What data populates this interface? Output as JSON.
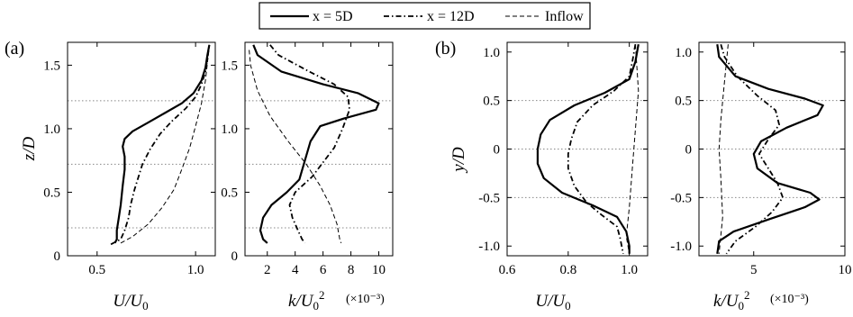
{
  "legend": [
    {
      "label": "x = 5D",
      "style": "solid"
    },
    {
      "label": "x = 12D",
      "style": "dashdot"
    },
    {
      "label": "Inflow",
      "style": "dashed"
    }
  ],
  "chart_data": [
    {
      "type": "line",
      "panel": "(a)",
      "ylabel": "z/D",
      "xlabel": "U/U0",
      "xlim": [
        0.35,
        1.1
      ],
      "ylim": [
        0,
        1.68
      ],
      "xticks": [
        0.5,
        1.0
      ],
      "xtick_labels": [
        "0.5",
        "1.0"
      ],
      "yticks": [
        0,
        0.5,
        1.0,
        1.5
      ],
      "ytick_labels": [
        "0",
        "0.5",
        "1.0",
        "1.5"
      ],
      "reference_lines": [
        0.22,
        0.72,
        1.22
      ],
      "series": [
        {
          "name": "x = 5D",
          "style": "solid",
          "points": [
            [
              0.59,
              0.1
            ],
            [
              0.6,
              0.13
            ],
            [
              0.6,
              0.2
            ],
            [
              0.61,
              0.3
            ],
            [
              0.62,
              0.4
            ],
            [
              0.63,
              0.55
            ],
            [
              0.64,
              0.68
            ],
            [
              0.64,
              0.78
            ],
            [
              0.63,
              0.86
            ],
            [
              0.64,
              0.92
            ],
            [
              0.68,
              0.98
            ],
            [
              0.76,
              1.05
            ],
            [
              0.84,
              1.12
            ],
            [
              0.93,
              1.2
            ],
            [
              0.99,
              1.28
            ],
            [
              1.03,
              1.38
            ],
            [
              1.05,
              1.48
            ],
            [
              1.06,
              1.58
            ],
            [
              1.07,
              1.66
            ]
          ]
        },
        {
          "name": "x = 12D",
          "style": "dashdot",
          "points": [
            [
              0.57,
              0.09
            ],
            [
              0.62,
              0.13
            ],
            [
              0.64,
              0.2
            ],
            [
              0.66,
              0.3
            ],
            [
              0.67,
              0.4
            ],
            [
              0.69,
              0.52
            ],
            [
              0.71,
              0.62
            ],
            [
              0.73,
              0.72
            ],
            [
              0.77,
              0.84
            ],
            [
              0.82,
              0.96
            ],
            [
              0.88,
              1.06
            ],
            [
              0.95,
              1.16
            ],
            [
              1.0,
              1.25
            ],
            [
              1.03,
              1.35
            ],
            [
              1.05,
              1.45
            ],
            [
              1.06,
              1.55
            ],
            [
              1.07,
              1.66
            ]
          ]
        },
        {
          "name": "Inflow",
          "style": "dashed",
          "points": [
            [
              0.62,
              0.1
            ],
            [
              0.68,
              0.15
            ],
            [
              0.76,
              0.25
            ],
            [
              0.83,
              0.38
            ],
            [
              0.89,
              0.52
            ],
            [
              0.93,
              0.68
            ],
            [
              0.97,
              0.85
            ],
            [
              1.0,
              1.02
            ],
            [
              1.03,
              1.2
            ],
            [
              1.05,
              1.38
            ],
            [
              1.06,
              1.52
            ],
            [
              1.07,
              1.66
            ]
          ]
        }
      ]
    },
    {
      "type": "line",
      "panel": "(a)",
      "xlabel": "k/U0^2",
      "x_multiplier": "(×10⁻³)",
      "xlim": [
        0.4,
        11
      ],
      "ylim": [
        0,
        1.68
      ],
      "xticks": [
        2,
        4,
        6,
        8,
        10
      ],
      "xtick_labels": [
        "2",
        "4",
        "6",
        "8",
        "10"
      ],
      "yticks": [
        0,
        0.5,
        1.0,
        1.5
      ],
      "ytick_labels": [
        "0",
        "0.5",
        "1.0",
        "1.5"
      ],
      "reference_lines": [
        0.22,
        0.72,
        1.22
      ],
      "series": [
        {
          "name": "x = 5D",
          "style": "solid",
          "points": [
            [
              1.0,
              1.66
            ],
            [
              1.3,
              1.58
            ],
            [
              3.0,
              1.45
            ],
            [
              6.0,
              1.35
            ],
            [
              8.5,
              1.28
            ],
            [
              10.0,
              1.2
            ],
            [
              9.8,
              1.15
            ],
            [
              7.5,
              1.08
            ],
            [
              5.8,
              1.02
            ],
            [
              5.1,
              0.9
            ],
            [
              4.7,
              0.75
            ],
            [
              4.3,
              0.6
            ],
            [
              3.4,
              0.5
            ],
            [
              2.3,
              0.4
            ],
            [
              1.7,
              0.3
            ],
            [
              1.5,
              0.2
            ],
            [
              1.7,
              0.13
            ],
            [
              2.0,
              0.1
            ]
          ]
        },
        {
          "name": "x = 12D",
          "style": "dashdot",
          "points": [
            [
              2.2,
              1.66
            ],
            [
              2.8,
              1.58
            ],
            [
              5.0,
              1.45
            ],
            [
              6.8,
              1.35
            ],
            [
              7.8,
              1.25
            ],
            [
              7.9,
              1.15
            ],
            [
              7.4,
              1.0
            ],
            [
              6.8,
              0.85
            ],
            [
              5.9,
              0.72
            ],
            [
              5.2,
              0.62
            ],
            [
              4.0,
              0.5
            ],
            [
              3.6,
              0.4
            ],
            [
              3.8,
              0.3
            ],
            [
              4.2,
              0.2
            ],
            [
              4.5,
              0.13
            ],
            [
              4.7,
              0.1
            ]
          ]
        },
        {
          "name": "Inflow",
          "style": "dashed",
          "points": [
            [
              0.7,
              1.62
            ],
            [
              0.8,
              1.5
            ],
            [
              1.3,
              1.3
            ],
            [
              2.2,
              1.1
            ],
            [
              3.5,
              0.9
            ],
            [
              4.8,
              0.72
            ],
            [
              5.8,
              0.55
            ],
            [
              6.5,
              0.4
            ],
            [
              7.0,
              0.25
            ],
            [
              7.2,
              0.13
            ],
            [
              7.3,
              0.1
            ]
          ]
        }
      ]
    },
    {
      "type": "line",
      "panel": "(b)",
      "ylabel": "y/D",
      "xlabel": "U/U0",
      "xlim": [
        0.6,
        1.06
      ],
      "ylim": [
        -1.1,
        1.1
      ],
      "xticks": [
        0.6,
        0.8,
        1.0
      ],
      "xtick_labels": [
        "0.6",
        "0.8",
        "1.0"
      ],
      "yticks": [
        -1.0,
        -0.5,
        0,
        0.5,
        1.0
      ],
      "ytick_labels": [
        "-1.0",
        "-0.5",
        "0",
        "0.5",
        "1.0"
      ],
      "reference_lines": [
        -0.5,
        0,
        0.5
      ],
      "series": [
        {
          "name": "x = 5D",
          "style": "solid",
          "points": [
            [
              1.03,
              1.08
            ],
            [
              1.02,
              0.9
            ],
            [
              1.0,
              0.72
            ],
            [
              0.92,
              0.58
            ],
            [
              0.82,
              0.45
            ],
            [
              0.74,
              0.3
            ],
            [
              0.71,
              0.15
            ],
            [
              0.7,
              0.0
            ],
            [
              0.7,
              -0.15
            ],
            [
              0.72,
              -0.3
            ],
            [
              0.78,
              -0.45
            ],
            [
              0.88,
              -0.58
            ],
            [
              0.96,
              -0.7
            ],
            [
              0.99,
              -0.85
            ],
            [
              1.0,
              -1.0
            ],
            [
              1.0,
              -1.08
            ]
          ]
        },
        {
          "name": "x = 12D",
          "style": "dashdot",
          "points": [
            [
              1.02,
              1.08
            ],
            [
              1.01,
              0.9
            ],
            [
              1.0,
              0.75
            ],
            [
              0.95,
              0.6
            ],
            [
              0.88,
              0.45
            ],
            [
              0.83,
              0.28
            ],
            [
              0.81,
              0.1
            ],
            [
              0.8,
              -0.05
            ],
            [
              0.8,
              -0.2
            ],
            [
              0.82,
              -0.38
            ],
            [
              0.86,
              -0.55
            ],
            [
              0.91,
              -0.68
            ],
            [
              0.96,
              -0.8
            ],
            [
              0.97,
              -0.92
            ],
            [
              0.98,
              -1.08
            ]
          ]
        },
        {
          "name": "Inflow",
          "style": "dashed",
          "points": [
            [
              1.02,
              1.08
            ],
            [
              1.03,
              0.6
            ],
            [
              1.02,
              0.2
            ],
            [
              1.01,
              -0.2
            ],
            [
              1.0,
              -0.6
            ],
            [
              0.99,
              -0.9
            ],
            [
              1.0,
              -1.08
            ]
          ]
        }
      ]
    },
    {
      "type": "line",
      "panel": "(b)",
      "xlabel": "k/U0^2",
      "x_multiplier": "(×10⁻³)",
      "xlim": [
        2,
        10
      ],
      "ylim": [
        -1.1,
        1.1
      ],
      "xticks": [
        5,
        10
      ],
      "xtick_labels": [
        "5",
        "10"
      ],
      "yticks": [
        -1.0,
        -0.5,
        0,
        0.5,
        1.0
      ],
      "ytick_labels": [
        "-1.0",
        "-0.5",
        "0",
        "0.5",
        "1.0"
      ],
      "reference_lines": [
        -0.5,
        0,
        0.5
      ],
      "series": [
        {
          "name": "x = 5D",
          "style": "solid",
          "points": [
            [
              3.0,
              1.08
            ],
            [
              3.1,
              0.95
            ],
            [
              4.0,
              0.75
            ],
            [
              5.8,
              0.62
            ],
            [
              7.8,
              0.52
            ],
            [
              8.8,
              0.45
            ],
            [
              8.5,
              0.35
            ],
            [
              6.8,
              0.22
            ],
            [
              5.4,
              0.08
            ],
            [
              5.0,
              -0.05
            ],
            [
              5.2,
              -0.2
            ],
            [
              6.3,
              -0.35
            ],
            [
              8.1,
              -0.45
            ],
            [
              8.6,
              -0.52
            ],
            [
              7.8,
              -0.6
            ],
            [
              5.9,
              -0.72
            ],
            [
              3.9,
              -0.85
            ],
            [
              3.1,
              -0.95
            ],
            [
              3.0,
              -1.08
            ]
          ]
        },
        {
          "name": "x = 12D",
          "style": "dashdot",
          "points": [
            [
              3.2,
              1.08
            ],
            [
              3.4,
              0.95
            ],
            [
              4.1,
              0.75
            ],
            [
              5.2,
              0.55
            ],
            [
              6.2,
              0.4
            ],
            [
              6.4,
              0.25
            ],
            [
              5.8,
              0.1
            ],
            [
              5.3,
              -0.05
            ],
            [
              5.8,
              -0.2
            ],
            [
              6.3,
              -0.35
            ],
            [
              6.6,
              -0.5
            ],
            [
              6.0,
              -0.65
            ],
            [
              5.1,
              -0.8
            ],
            [
              4.0,
              -0.95
            ],
            [
              3.5,
              -1.08
            ]
          ]
        },
        {
          "name": "Inflow",
          "style": "dashed",
          "points": [
            [
              3.6,
              1.08
            ],
            [
              3.4,
              0.7
            ],
            [
              3.2,
              0.3
            ],
            [
              3.1,
              0.0
            ],
            [
              3.2,
              -0.3
            ],
            [
              3.3,
              -0.7
            ],
            [
              3.1,
              -1.08
            ]
          ]
        }
      ]
    }
  ]
}
